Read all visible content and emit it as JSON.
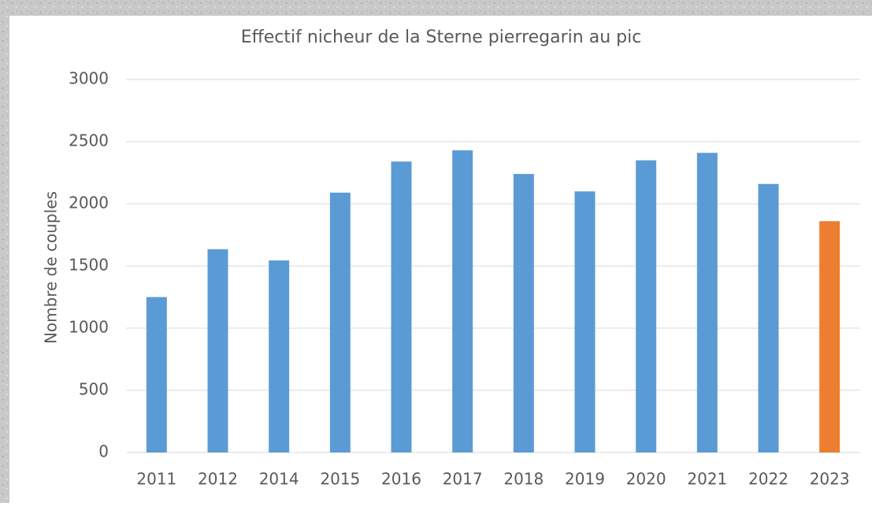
{
  "chart_data": {
    "type": "bar",
    "title": "Effectif nicheur de la Sterne pierregarin au pic",
    "y_label": "Nombre de couples",
    "categories": [
      "2011",
      "2012",
      "2014",
      "2015",
      "2016",
      "2017",
      "2018",
      "2019",
      "2020",
      "2021",
      "2022",
      "2023"
    ],
    "values": [
      1250,
      1635,
      1545,
      2090,
      2340,
      2430,
      2240,
      2100,
      2350,
      2410,
      2160,
      1860
    ],
    "colors": [
      "#5b9bd5",
      "#5b9bd5",
      "#5b9bd5",
      "#5b9bd5",
      "#5b9bd5",
      "#5b9bd5",
      "#5b9bd5",
      "#5b9bd5",
      "#5b9bd5",
      "#5b9bd5",
      "#5b9bd5",
      "#ed7d31"
    ],
    "ylim": [
      0,
      3000
    ],
    "yticks": [
      0,
      500,
      1000,
      1500,
      2000,
      2500,
      3000
    ],
    "grid": true
  }
}
